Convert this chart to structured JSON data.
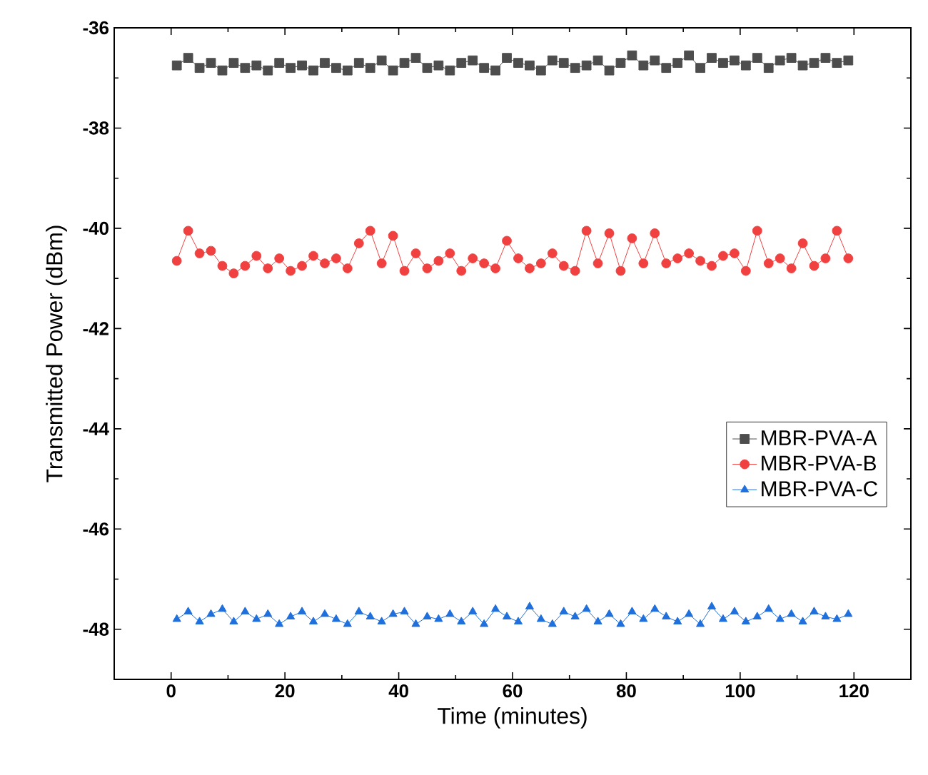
{
  "chart_data": {
    "type": "line",
    "xlabel": "Time (minutes)",
    "ylabel": "Transmitted Power (dBm)",
    "xlim": [
      -10,
      130
    ],
    "ylim": [
      -49,
      -36
    ],
    "xticks": [
      0,
      20,
      40,
      60,
      80,
      100,
      120
    ],
    "yticks": [
      -48,
      -46,
      -44,
      -42,
      -40,
      -38,
      -36
    ],
    "legend": "right",
    "grid": false,
    "x": [
      1,
      3,
      5,
      7,
      9,
      11,
      13,
      15,
      17,
      19,
      21,
      23,
      25,
      27,
      29,
      31,
      33,
      35,
      37,
      39,
      41,
      43,
      45,
      47,
      49,
      51,
      53,
      55,
      57,
      59,
      61,
      63,
      65,
      67,
      69,
      71,
      73,
      75,
      77,
      79,
      81,
      83,
      85,
      87,
      89,
      91,
      93,
      95,
      97,
      99,
      101,
      103,
      105,
      107,
      109,
      111,
      113,
      115,
      117,
      119
    ],
    "series": [
      {
        "name": "MBR-PVA-A",
        "color": "#4d4d4d",
        "marker": "square",
        "values": [
          -36.75,
          -36.6,
          -36.8,
          -36.7,
          -36.85,
          -36.7,
          -36.8,
          -36.75,
          -36.85,
          -36.7,
          -36.8,
          -36.75,
          -36.85,
          -36.7,
          -36.8,
          -36.85,
          -36.7,
          -36.8,
          -36.65,
          -36.85,
          -36.7,
          -36.6,
          -36.8,
          -36.75,
          -36.85,
          -36.7,
          -36.65,
          -36.8,
          -36.85,
          -36.6,
          -36.7,
          -36.75,
          -36.85,
          -36.65,
          -36.7,
          -36.8,
          -36.75,
          -36.65,
          -36.85,
          -36.7,
          -36.55,
          -36.75,
          -36.65,
          -36.8,
          -36.7,
          -36.55,
          -36.8,
          -36.6,
          -36.7,
          -36.65,
          -36.75,
          -36.6,
          -36.8,
          -36.65,
          -36.6,
          -36.75,
          -36.7,
          -36.6,
          -36.7,
          -36.65
        ]
      },
      {
        "name": "MBR-PVA-B",
        "color": "#f04040",
        "marker": "circle",
        "values": [
          -40.65,
          -40.05,
          -40.5,
          -40.45,
          -40.75,
          -40.9,
          -40.75,
          -40.55,
          -40.8,
          -40.6,
          -40.85,
          -40.75,
          -40.55,
          -40.7,
          -40.6,
          -40.8,
          -40.3,
          -40.05,
          -40.7,
          -40.15,
          -40.85,
          -40.5,
          -40.8,
          -40.65,
          -40.5,
          -40.85,
          -40.6,
          -40.7,
          -40.8,
          -40.25,
          -40.6,
          -40.8,
          -40.7,
          -40.5,
          -40.75,
          -40.85,
          -40.05,
          -40.7,
          -40.1,
          -40.85,
          -40.2,
          -40.7,
          -40.1,
          -40.7,
          -40.6,
          -40.5,
          -40.65,
          -40.75,
          -40.55,
          -40.5,
          -40.85,
          -40.05,
          -40.7,
          -40.6,
          -40.8,
          -40.3,
          -40.75,
          -40.6,
          -40.05,
          -40.6
        ]
      },
      {
        "name": "MBR-PVA-C",
        "color": "#1f6fdc",
        "marker": "triangle",
        "values": [
          -47.8,
          -47.65,
          -47.85,
          -47.7,
          -47.6,
          -47.85,
          -47.65,
          -47.8,
          -47.7,
          -47.9,
          -47.75,
          -47.65,
          -47.85,
          -47.7,
          -47.8,
          -47.9,
          -47.65,
          -47.75,
          -47.85,
          -47.7,
          -47.65,
          -47.9,
          -47.75,
          -47.8,
          -47.7,
          -47.85,
          -47.65,
          -47.9,
          -47.6,
          -47.75,
          -47.85,
          -47.55,
          -47.8,
          -47.9,
          -47.65,
          -47.75,
          -47.6,
          -47.85,
          -47.7,
          -47.9,
          -47.65,
          -47.8,
          -47.6,
          -47.75,
          -47.85,
          -47.7,
          -47.9,
          -47.55,
          -47.8,
          -47.65,
          -47.85,
          -47.75,
          -47.6,
          -47.8,
          -47.7,
          -47.85,
          -47.65,
          -47.75,
          -47.8,
          -47.7
        ]
      }
    ]
  }
}
